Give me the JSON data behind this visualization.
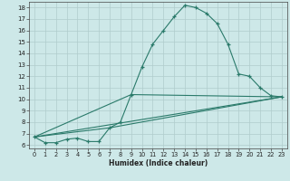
{
  "xlabel": "Humidex (Indice chaleur)",
  "xlim": [
    0,
    23
  ],
  "ylim": [
    6,
    18
  ],
  "xticks": [
    0,
    1,
    2,
    3,
    4,
    5,
    6,
    7,
    8,
    9,
    10,
    11,
    12,
    13,
    14,
    15,
    16,
    17,
    18,
    19,
    20,
    21,
    22,
    23
  ],
  "yticks": [
    6,
    7,
    8,
    9,
    10,
    11,
    12,
    13,
    14,
    15,
    16,
    17,
    18
  ],
  "bg_color": "#cde8e8",
  "grid_color": "#b0cccc",
  "line_color": "#2a7a6a",
  "line1_x": [
    0,
    1,
    2,
    3,
    4,
    5,
    6,
    7,
    8,
    9,
    10,
    11,
    12,
    13,
    14,
    15,
    16,
    17,
    18,
    19,
    20,
    21,
    22,
    23
  ],
  "line1_y": [
    6.7,
    6.2,
    6.2,
    6.5,
    6.6,
    6.3,
    6.3,
    7.5,
    8.0,
    10.4,
    12.8,
    14.8,
    16.0,
    17.2,
    18.2,
    18.0,
    17.5,
    16.6,
    14.8,
    12.2,
    12.0,
    11.0,
    10.3,
    10.2
  ],
  "line2_x": [
    0,
    23
  ],
  "line2_y": [
    6.7,
    10.2
  ],
  "line3_x": [
    0,
    7,
    23
  ],
  "line3_y": [
    6.7,
    7.5,
    10.2
  ],
  "line4_x": [
    0,
    9,
    23
  ],
  "line4_y": [
    6.7,
    10.4,
    10.2
  ]
}
